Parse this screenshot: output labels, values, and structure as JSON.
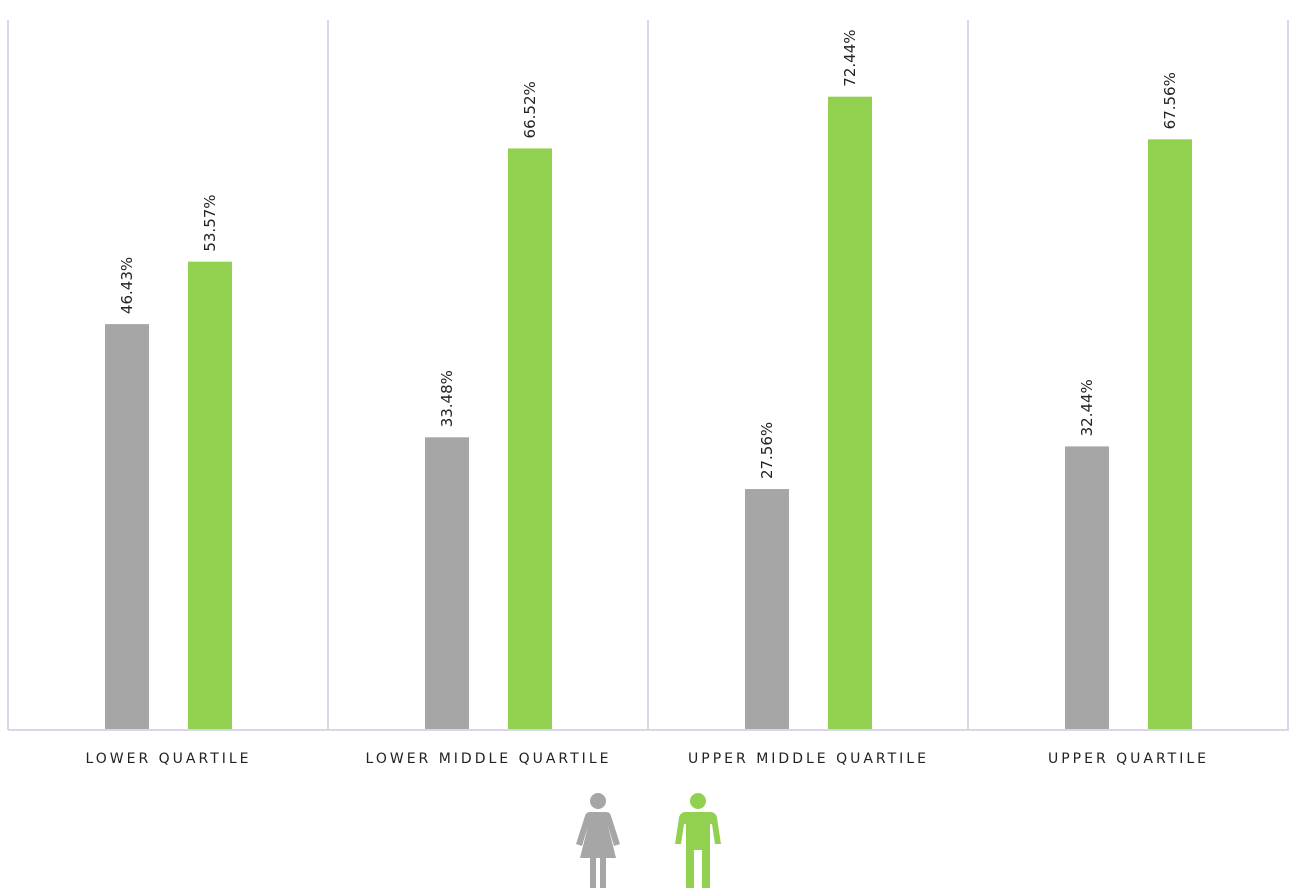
{
  "chart_data": {
    "type": "bar",
    "categories": [
      "LOWER QUARTILE",
      "LOWER MIDDLE QUARTILE",
      "UPPER MIDDLE QUARTILE",
      "UPPER QUARTILE"
    ],
    "series": [
      {
        "values": [
          46.43,
          33.48,
          27.56,
          32.44
        ],
        "labels": [
          "46.43%",
          "33.48%",
          "27.56%",
          "32.44%"
        ],
        "color": "#a6a6a6"
      },
      {
        "values": [
          53.57,
          66.52,
          72.44,
          67.56
        ],
        "labels": [
          "53.57%",
          "66.52%",
          "72.44%",
          "67.56%"
        ],
        "color": "#92d050"
      }
    ],
    "ylim": [
      0,
      83.5
    ],
    "grid": false,
    "separator_color": "#d9d6ea",
    "legend": {
      "placement": "bottom-center",
      "items": [
        {
          "icon": "female-icon",
          "color": "#a6a6a6"
        },
        {
          "icon": "male-icon",
          "color": "#92d050"
        }
      ]
    }
  }
}
